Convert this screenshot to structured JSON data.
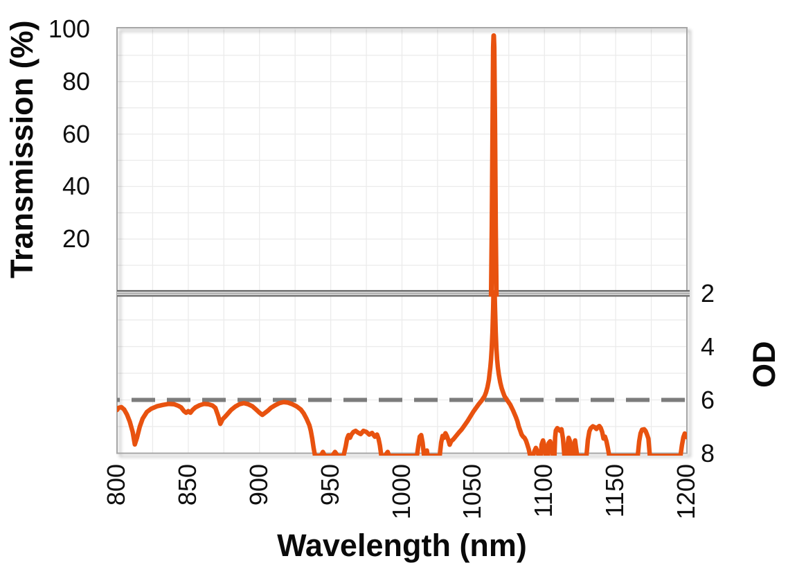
{
  "chart_data": {
    "type": "line",
    "title": "",
    "xlabel": "Wavelength (nm)",
    "x_range": [
      800,
      1200
    ],
    "x_ticks": [
      800,
      850,
      900,
      950,
      1000,
      1050,
      1100,
      1150,
      1200
    ],
    "x_minor_gridline_step_nm": 25,
    "axis_break": true,
    "panels": [
      {
        "id": "transmission",
        "ylabel": "Transmission (%)",
        "y_range": [
          0,
          100
        ],
        "y_ticks": [
          100,
          80,
          60,
          40,
          20
        ],
        "minor_gridline_step": 10,
        "inverted": false
      },
      {
        "id": "od",
        "ylabel": "OD",
        "y_range": [
          2,
          8
        ],
        "y_ticks": [
          2,
          4,
          6,
          8
        ],
        "minor_gridline_step": 1,
        "inverted": true
      }
    ],
    "reference_line": {
      "panel": "od",
      "value": 6,
      "style": "dashed"
    },
    "legend": null,
    "grid": true,
    "series": [
      {
        "name": "transmission-peak",
        "panel": "transmission",
        "points": [
          [
            1062.6,
            -4
          ],
          [
            1063.2,
            25
          ],
          [
            1063.7,
            65
          ],
          [
            1064.1,
            93
          ],
          [
            1064.4,
            97.5
          ],
          [
            1064.7,
            93
          ],
          [
            1065.2,
            65
          ],
          [
            1065.7,
            25
          ],
          [
            1066.3,
            -4
          ]
        ]
      },
      {
        "name": "blocking-od",
        "panel": "od",
        "points": [
          [
            800,
            6.38
          ],
          [
            801,
            6.3
          ],
          [
            803,
            6.27
          ],
          [
            805,
            6.36
          ],
          [
            807,
            6.55
          ],
          [
            809,
            6.82
          ],
          [
            811,
            7.2
          ],
          [
            812.5,
            7.67
          ],
          [
            814,
            7.42
          ],
          [
            816,
            7.0
          ],
          [
            818,
            6.7
          ],
          [
            821,
            6.45
          ],
          [
            824,
            6.33
          ],
          [
            828,
            6.24
          ],
          [
            832,
            6.19
          ],
          [
            836,
            6.15
          ],
          [
            840,
            6.16
          ],
          [
            843,
            6.22
          ],
          [
            845,
            6.28
          ],
          [
            847,
            6.42
          ],
          [
            848.5,
            6.48
          ],
          [
            850,
            6.42
          ],
          [
            851.5,
            6.48
          ],
          [
            853,
            6.38
          ],
          [
            855,
            6.28
          ],
          [
            858,
            6.2
          ],
          [
            861,
            6.15
          ],
          [
            864,
            6.16
          ],
          [
            867,
            6.21
          ],
          [
            869,
            6.3
          ],
          [
            871,
            6.6
          ],
          [
            872.5,
            6.9
          ],
          [
            874,
            6.73
          ],
          [
            876,
            6.62
          ],
          [
            878,
            6.5
          ],
          [
            880,
            6.38
          ],
          [
            883,
            6.25
          ],
          [
            886,
            6.16
          ],
          [
            889,
            6.12
          ],
          [
            892,
            6.16
          ],
          [
            895,
            6.24
          ],
          [
            898,
            6.38
          ],
          [
            900,
            6.48
          ],
          [
            902,
            6.56
          ],
          [
            904,
            6.48
          ],
          [
            906,
            6.4
          ],
          [
            908,
            6.3
          ],
          [
            911,
            6.2
          ],
          [
            914,
            6.12
          ],
          [
            917,
            6.08
          ],
          [
            920,
            6.1
          ],
          [
            923,
            6.16
          ],
          [
            926,
            6.24
          ],
          [
            929,
            6.36
          ],
          [
            931,
            6.5
          ],
          [
            933,
            6.7
          ],
          [
            935,
            6.95
          ],
          [
            936,
            7.15
          ],
          [
            937,
            7.45
          ],
          [
            938,
            7.8
          ],
          [
            939,
            8.1
          ],
          [
            943,
            8.1
          ],
          [
            944.5,
            7.95
          ],
          [
            946,
            8.1
          ],
          [
            951,
            8.1
          ],
          [
            953,
            7.95
          ],
          [
            955,
            8.1
          ],
          [
            959,
            8.1
          ],
          [
            960.5,
            7.75
          ],
          [
            961.5,
            7.45
          ],
          [
            962.5,
            7.32
          ],
          [
            963.5,
            7.42
          ],
          [
            964.5,
            7.3
          ],
          [
            966,
            7.2
          ],
          [
            967.5,
            7.16
          ],
          [
            969,
            7.22
          ],
          [
            971,
            7.28
          ],
          [
            973,
            7.16
          ],
          [
            975,
            7.2
          ],
          [
            977,
            7.3
          ],
          [
            979,
            7.24
          ],
          [
            981,
            7.38
          ],
          [
            982.5,
            7.3
          ],
          [
            983.5,
            7.45
          ],
          [
            984.5,
            7.7
          ],
          [
            985.5,
            8.1
          ],
          [
            988,
            8.1
          ],
          [
            990,
            7.95
          ],
          [
            991,
            8.1
          ],
          [
            1010.5,
            8.1
          ],
          [
            1011.5,
            7.7
          ],
          [
            1012.5,
            7.38
          ],
          [
            1013.5,
            7.32
          ],
          [
            1014.5,
            7.6
          ],
          [
            1015.5,
            8.1
          ],
          [
            1017,
            8.1
          ],
          [
            1017.5,
            7.9
          ],
          [
            1018,
            8.1
          ],
          [
            1026.5,
            8.1
          ],
          [
            1027.5,
            7.6
          ],
          [
            1028.5,
            7.35
          ],
          [
            1029.5,
            7.42
          ],
          [
            1030.5,
            7.25
          ],
          [
            1031.5,
            7.35
          ],
          [
            1032.5,
            7.5
          ],
          [
            1033.5,
            7.68
          ],
          [
            1034.5,
            7.55
          ],
          [
            1036,
            7.48
          ],
          [
            1038,
            7.35
          ],
          [
            1040,
            7.22
          ],
          [
            1042,
            7.1
          ],
          [
            1044,
            6.95
          ],
          [
            1046,
            6.8
          ],
          [
            1048,
            6.62
          ],
          [
            1050,
            6.45
          ],
          [
            1052,
            6.3
          ],
          [
            1054,
            6.15
          ],
          [
            1056,
            6.02
          ],
          [
            1058,
            5.86
          ],
          [
            1059,
            5.72
          ],
          [
            1060,
            5.52
          ],
          [
            1061,
            5.25
          ],
          [
            1061.5,
            5.02
          ],
          [
            1062,
            4.78
          ],
          [
            1062.5,
            4.48
          ],
          [
            1063,
            4.08
          ],
          [
            1063.5,
            3.45
          ],
          [
            1064,
            2.55
          ],
          [
            1064.3,
            1.8
          ],
          [
            1065,
            1.8
          ],
          [
            1065.3,
            2.55
          ],
          [
            1065.8,
            3.45
          ],
          [
            1066.3,
            4.08
          ],
          [
            1066.8,
            4.48
          ],
          [
            1067.3,
            4.78
          ],
          [
            1068,
            5.05
          ],
          [
            1069,
            5.35
          ],
          [
            1070,
            5.56
          ],
          [
            1071,
            5.72
          ],
          [
            1072,
            5.86
          ],
          [
            1074,
            6.02
          ],
          [
            1076,
            6.18
          ],
          [
            1078,
            6.4
          ],
          [
            1080,
            6.65
          ],
          [
            1081,
            6.8
          ],
          [
            1082,
            7.0
          ],
          [
            1083,
            7.15
          ],
          [
            1084,
            7.3
          ],
          [
            1085,
            7.38
          ],
          [
            1086,
            7.42
          ],
          [
            1087,
            7.52
          ],
          [
            1088,
            7.68
          ],
          [
            1089,
            7.85
          ],
          [
            1090,
            8.1
          ],
          [
            1092,
            8.1
          ],
          [
            1093,
            7.92
          ],
          [
            1094,
            7.8
          ],
          [
            1095,
            7.92
          ],
          [
            1096,
            8.1
          ],
          [
            1097.5,
            8.1
          ],
          [
            1098,
            7.68
          ],
          [
            1099,
            7.52
          ],
          [
            1100,
            7.72
          ],
          [
            1101,
            8.1
          ],
          [
            1102.5,
            8.1
          ],
          [
            1103,
            7.62
          ],
          [
            1104,
            7.55
          ],
          [
            1105,
            7.72
          ],
          [
            1106,
            8.1
          ],
          [
            1107,
            8.1
          ],
          [
            1107.5,
            7.4
          ],
          [
            1108,
            7.15
          ],
          [
            1109,
            7.06
          ],
          [
            1110,
            7.1
          ],
          [
            1111,
            7.16
          ],
          [
            1112,
            7.1
          ],
          [
            1113,
            7.45
          ],
          [
            1114,
            8.1
          ],
          [
            1116,
            8.1
          ],
          [
            1116.5,
            7.6
          ],
          [
            1117,
            7.42
          ],
          [
            1118,
            7.56
          ],
          [
            1119,
            8.1
          ],
          [
            1120.5,
            8.1
          ],
          [
            1121,
            7.66
          ],
          [
            1121.5,
            7.52
          ],
          [
            1122,
            7.72
          ],
          [
            1123,
            8.1
          ],
          [
            1129.5,
            8.1
          ],
          [
            1130.5,
            7.5
          ],
          [
            1131.5,
            7.18
          ],
          [
            1132.5,
            7.06
          ],
          [
            1134,
            6.99
          ],
          [
            1135.5,
            7.03
          ],
          [
            1136.5,
            7.09
          ],
          [
            1137.5,
            7.02
          ],
          [
            1138.5,
            6.98
          ],
          [
            1139.5,
            7.05
          ],
          [
            1140.5,
            7.2
          ],
          [
            1141.5,
            7.45
          ],
          [
            1142.5,
            7.38
          ],
          [
            1143.5,
            7.55
          ],
          [
            1144.5,
            7.8
          ],
          [
            1145.5,
            8.1
          ],
          [
            1165.5,
            8.1
          ],
          [
            1166.5,
            7.55
          ],
          [
            1167.5,
            7.25
          ],
          [
            1168.5,
            7.12
          ],
          [
            1170,
            7.1
          ],
          [
            1171,
            7.16
          ],
          [
            1172,
            7.3
          ],
          [
            1173,
            7.45
          ],
          [
            1174,
            8.1
          ],
          [
            1195.5,
            8.1
          ],
          [
            1196.5,
            7.7
          ],
          [
            1197.5,
            7.4
          ],
          [
            1198.5,
            7.26
          ],
          [
            1199.5,
            7.32
          ],
          [
            1200,
            7.4
          ]
        ]
      }
    ]
  },
  "colors": {
    "curve_orange": "#e8520f",
    "reference_dash_gray": "#7c7c7c",
    "gridline": "#ebebeb",
    "frame": "#a6a6a6",
    "break_band_dark": "#686868",
    "break_band_mid": "#9a9a9a",
    "break_band_light": "#d6d6d6",
    "text": "#0f0f0f",
    "background": "#ffffff"
  }
}
